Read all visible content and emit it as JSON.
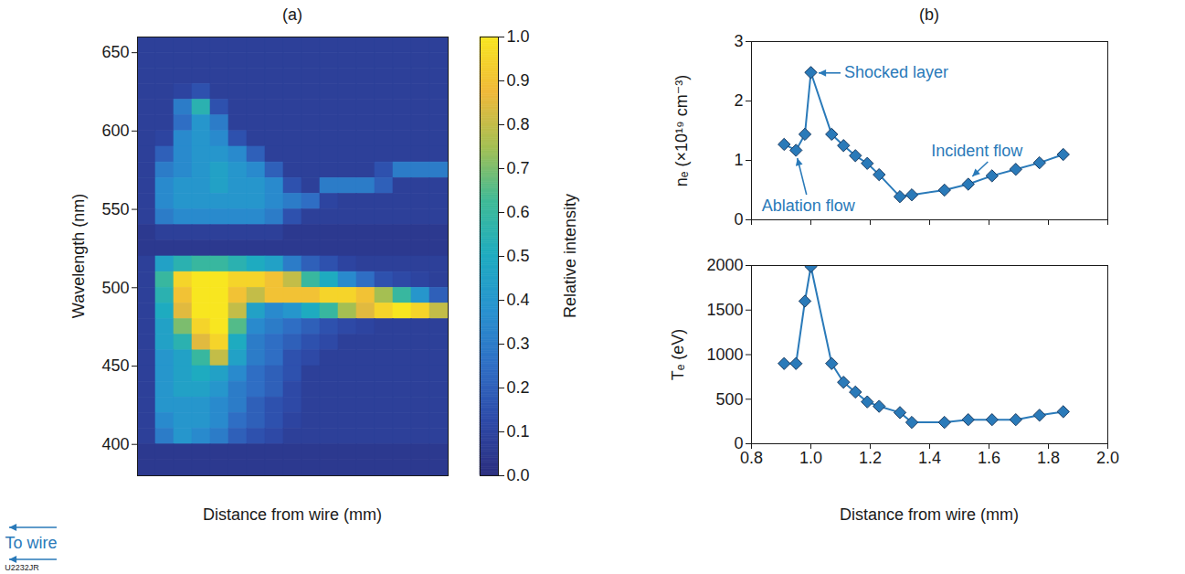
{
  "chart_data": [
    {
      "type": "heatmap",
      "title": "(a)",
      "x_label": "Distance from wire (mm)",
      "y_label": "Wavelength (nm)",
      "tick_labels": "y",
      "ylim": [
        380,
        660
      ],
      "yticks": [
        400,
        450,
        500,
        550,
        600,
        650
      ],
      "heatmap": {
        "y": [
          655,
          645,
          635,
          625,
          615,
          605,
          595,
          585,
          575,
          565,
          555,
          545,
          535,
          525,
          515,
          505,
          495,
          485,
          475,
          465,
          455,
          445,
          435,
          425,
          415,
          405,
          395,
          385
        ],
        "values": [
          [
            0.08,
            0.08,
            0.08,
            0.08,
            0.08,
            0.08,
            0.08,
            0.08,
            0.08,
            0.08,
            0.08,
            0.08,
            0.08,
            0.08,
            0.08,
            0.08,
            0.08
          ],
          [
            0.08,
            0.08,
            0.08,
            0.08,
            0.08,
            0.08,
            0.08,
            0.08,
            0.08,
            0.08,
            0.08,
            0.08,
            0.08,
            0.08,
            0.08,
            0.08,
            0.08
          ],
          [
            0.08,
            0.08,
            0.08,
            0.08,
            0.08,
            0.08,
            0.08,
            0.08,
            0.08,
            0.08,
            0.08,
            0.08,
            0.08,
            0.08,
            0.08,
            0.08,
            0.08
          ],
          [
            0.08,
            0.08,
            0.1,
            0.15,
            0.08,
            0.08,
            0.08,
            0.08,
            0.08,
            0.08,
            0.08,
            0.08,
            0.08,
            0.08,
            0.08,
            0.08,
            0.08
          ],
          [
            0.08,
            0.08,
            0.3,
            0.55,
            0.15,
            0.08,
            0.08,
            0.08,
            0.08,
            0.08,
            0.08,
            0.08,
            0.08,
            0.08,
            0.08,
            0.08,
            0.08
          ],
          [
            0.08,
            0.08,
            0.25,
            0.4,
            0.3,
            0.08,
            0.08,
            0.08,
            0.08,
            0.08,
            0.08,
            0.08,
            0.08,
            0.08,
            0.08,
            0.08,
            0.08
          ],
          [
            0.08,
            0.1,
            0.35,
            0.4,
            0.35,
            0.15,
            0.08,
            0.08,
            0.08,
            0.08,
            0.08,
            0.08,
            0.08,
            0.08,
            0.08,
            0.08,
            0.08
          ],
          [
            0.08,
            0.2,
            0.35,
            0.4,
            0.4,
            0.35,
            0.2,
            0.08,
            0.08,
            0.08,
            0.08,
            0.08,
            0.08,
            0.08,
            0.08,
            0.08,
            0.08
          ],
          [
            0.08,
            0.3,
            0.35,
            0.4,
            0.45,
            0.4,
            0.35,
            0.2,
            0.08,
            0.08,
            0.08,
            0.08,
            0.08,
            0.15,
            0.3,
            0.3,
            0.3
          ],
          [
            0.08,
            0.35,
            0.4,
            0.4,
            0.45,
            0.4,
            0.4,
            0.35,
            0.15,
            0.08,
            0.3,
            0.3,
            0.3,
            0.2,
            0.08,
            0.08,
            0.08
          ],
          [
            0.08,
            0.35,
            0.4,
            0.4,
            0.4,
            0.4,
            0.4,
            0.35,
            0.3,
            0.25,
            0.1,
            0.08,
            0.08,
            0.08,
            0.08,
            0.08,
            0.08
          ],
          [
            0.08,
            0.3,
            0.35,
            0.35,
            0.35,
            0.35,
            0.35,
            0.3,
            0.15,
            0.08,
            0.08,
            0.08,
            0.08,
            0.08,
            0.08,
            0.08,
            0.08
          ],
          [
            0.05,
            0.08,
            0.08,
            0.08,
            0.08,
            0.08,
            0.08,
            0.08,
            0.05,
            0.05,
            0.05,
            0.05,
            0.05,
            0.05,
            0.05,
            0.05,
            0.05
          ],
          [
            0.05,
            0.05,
            0.05,
            0.05,
            0.05,
            0.05,
            0.05,
            0.05,
            0.05,
            0.05,
            0.05,
            0.05,
            0.05,
            0.05,
            0.05,
            0.05,
            0.05
          ],
          [
            0.08,
            0.45,
            0.55,
            0.6,
            0.6,
            0.55,
            0.5,
            0.45,
            0.3,
            0.2,
            0.15,
            0.1,
            0.08,
            0.08,
            0.08,
            0.08,
            0.08
          ],
          [
            0.08,
            0.6,
            0.95,
            1.0,
            1.0,
            0.95,
            0.95,
            0.9,
            0.8,
            0.6,
            0.5,
            0.35,
            0.25,
            0.15,
            0.12,
            0.1,
            0.08
          ],
          [
            0.08,
            0.55,
            0.9,
            1.0,
            1.0,
            0.9,
            0.8,
            0.9,
            0.9,
            0.9,
            0.95,
            0.95,
            0.9,
            0.75,
            0.6,
            0.4,
            0.2
          ],
          [
            0.08,
            0.5,
            0.85,
            1.0,
            1.0,
            0.8,
            0.45,
            0.35,
            0.4,
            0.5,
            0.6,
            0.75,
            0.85,
            0.95,
            1.0,
            0.95,
            0.8
          ],
          [
            0.08,
            0.45,
            0.7,
            0.95,
            1.0,
            0.65,
            0.35,
            0.3,
            0.25,
            0.2,
            0.15,
            0.12,
            0.1,
            0.08,
            0.08,
            0.08,
            0.08
          ],
          [
            0.08,
            0.45,
            0.55,
            0.85,
            0.95,
            0.5,
            0.3,
            0.25,
            0.2,
            0.15,
            0.12,
            0.08,
            0.08,
            0.08,
            0.08,
            0.08,
            0.08
          ],
          [
            0.08,
            0.4,
            0.45,
            0.6,
            0.8,
            0.45,
            0.3,
            0.25,
            0.15,
            0.12,
            0.08,
            0.08,
            0.08,
            0.08,
            0.08,
            0.08,
            0.08
          ],
          [
            0.08,
            0.4,
            0.45,
            0.5,
            0.45,
            0.35,
            0.25,
            0.2,
            0.15,
            0.08,
            0.08,
            0.08,
            0.08,
            0.08,
            0.08,
            0.08,
            0.08
          ],
          [
            0.08,
            0.4,
            0.45,
            0.45,
            0.4,
            0.3,
            0.25,
            0.2,
            0.12,
            0.08,
            0.08,
            0.08,
            0.08,
            0.08,
            0.08,
            0.08,
            0.08
          ],
          [
            0.08,
            0.4,
            0.4,
            0.4,
            0.35,
            0.3,
            0.2,
            0.15,
            0.12,
            0.08,
            0.08,
            0.08,
            0.08,
            0.08,
            0.08,
            0.08,
            0.08
          ],
          [
            0.08,
            0.35,
            0.4,
            0.4,
            0.35,
            0.25,
            0.2,
            0.15,
            0.1,
            0.08,
            0.08,
            0.08,
            0.08,
            0.08,
            0.08,
            0.08,
            0.08
          ],
          [
            0.08,
            0.3,
            0.4,
            0.35,
            0.3,
            0.2,
            0.15,
            0.12,
            0.08,
            0.08,
            0.08,
            0.08,
            0.08,
            0.08,
            0.08,
            0.08,
            0.08
          ],
          [
            0.05,
            0.05,
            0.05,
            0.05,
            0.05,
            0.05,
            0.05,
            0.05,
            0.05,
            0.05,
            0.05,
            0.05,
            0.05,
            0.05,
            0.05,
            0.05,
            0.05
          ],
          [
            0.05,
            0.05,
            0.05,
            0.05,
            0.05,
            0.05,
            0.05,
            0.05,
            0.05,
            0.05,
            0.05,
            0.05,
            0.05,
            0.05,
            0.05,
            0.05,
            0.05
          ]
        ]
      },
      "colorbar": {
        "label": "Relative intensity",
        "range": [
          0,
          1
        ],
        "ticks": [
          {
            "value": 0,
            "label": "0.0"
          },
          0.1,
          0.2,
          0.3,
          0.4,
          0.5,
          0.6,
          0.7,
          0.8,
          0.9,
          {
            "value": 1,
            "label": "1.0"
          }
        ]
      },
      "annotations": [
        {
          "text": "To wire"
        }
      ],
      "footnote": "U2232JR"
    },
    {
      "type": "line",
      "title": "(b)",
      "y_label": "nₑ (×10¹⁹ cm⁻³)",
      "x": [
        0.91,
        0.95,
        0.98,
        1.0,
        1.07,
        1.11,
        1.15,
        1.19,
        1.23,
        1.3,
        1.34,
        1.45,
        1.53,
        1.61,
        1.69,
        1.77,
        1.85
      ],
      "values": [
        1.27,
        1.17,
        1.44,
        2.48,
        1.44,
        1.25,
        1.08,
        0.95,
        0.76,
        0.39,
        0.42,
        0.5,
        0.6,
        0.74,
        0.85,
        0.96,
        1.1
      ],
      "color": "#2a7ab9",
      "marker": "diamond",
      "xlim": [
        0.8,
        2.0
      ],
      "xticks": [
        0.8,
        {
          "value": 1.0,
          "label": "1.0"
        },
        1.2,
        1.4,
        1.6,
        1.8,
        {
          "value": 2.0,
          "label": "2.0"
        }
      ],
      "ylim": [
        0,
        3
      ],
      "yticks": [
        0,
        1,
        2,
        3
      ],
      "tick_labels": "y",
      "annotations": [
        {
          "text": "Shocked layer",
          "x": 1.0,
          "y": 2.48
        },
        {
          "text": "Ablation flow",
          "x": 0.95,
          "y": 1.17
        },
        {
          "text": "Incident flow",
          "x": 1.53,
          "y": 0.6
        }
      ]
    },
    {
      "type": "line",
      "x_label": "Distance from wire (mm)",
      "y_label": "Tₑ (eV)",
      "x": [
        0.91,
        0.95,
        0.98,
        1.0,
        1.07,
        1.11,
        1.15,
        1.19,
        1.23,
        1.3,
        1.34,
        1.45,
        1.53,
        1.61,
        1.69,
        1.77,
        1.85
      ],
      "values": [
        900,
        900,
        1600,
        1990,
        900,
        690,
        580,
        470,
        420,
        350,
        240,
        240,
        270,
        270,
        270,
        320,
        360
      ],
      "color": "#2a7ab9",
      "marker": "diamond",
      "xlim": [
        0.8,
        2.0
      ],
      "xticks": [
        0.8,
        {
          "value": 1.0,
          "label": "1.0"
        },
        1.2,
        1.4,
        1.6,
        1.8,
        {
          "value": 2.0,
          "label": "2.0"
        }
      ],
      "ylim": [
        0,
        2000
      ],
      "yticks": [
        0,
        500,
        1000,
        1500,
        2000
      ]
    }
  ]
}
